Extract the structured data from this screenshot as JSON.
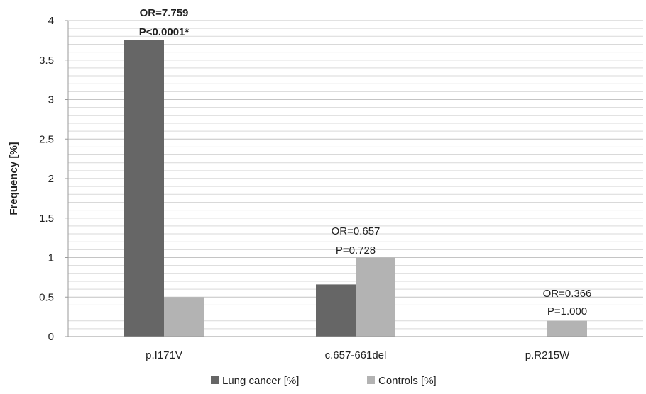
{
  "chart_data": {
    "type": "bar",
    "categories": [
      "p.I171V",
      "c.657-661del",
      "p.R215W"
    ],
    "series": [
      {
        "name": "Lung cancer [%]",
        "color": "#666666",
        "values": [
          3.75,
          0.66,
          0
        ]
      },
      {
        "name": "Controls [%]",
        "color": "#b3b3b3",
        "values": [
          0.5,
          1.0,
          0.2
        ]
      }
    ],
    "xlabel": "",
    "ylabel": "Frequency [%]",
    "ylim": [
      0,
      4
    ],
    "yticks": [
      "0",
      "0.5",
      "1",
      "1.5",
      "2",
      "2.5",
      "3",
      "3.5",
      "4"
    ],
    "grid": true,
    "legend_position": "bottom",
    "annotations": [
      {
        "category": 0,
        "lines": [
          "OR=7.759",
          "P<0.0001*"
        ],
        "bold": true
      },
      {
        "category": 1,
        "lines": [
          "OR=0.657",
          "P=0.728"
        ],
        "bold": false
      },
      {
        "category": 2,
        "lines": [
          "OR=0.366",
          "P=1.000"
        ],
        "bold": false
      }
    ]
  }
}
